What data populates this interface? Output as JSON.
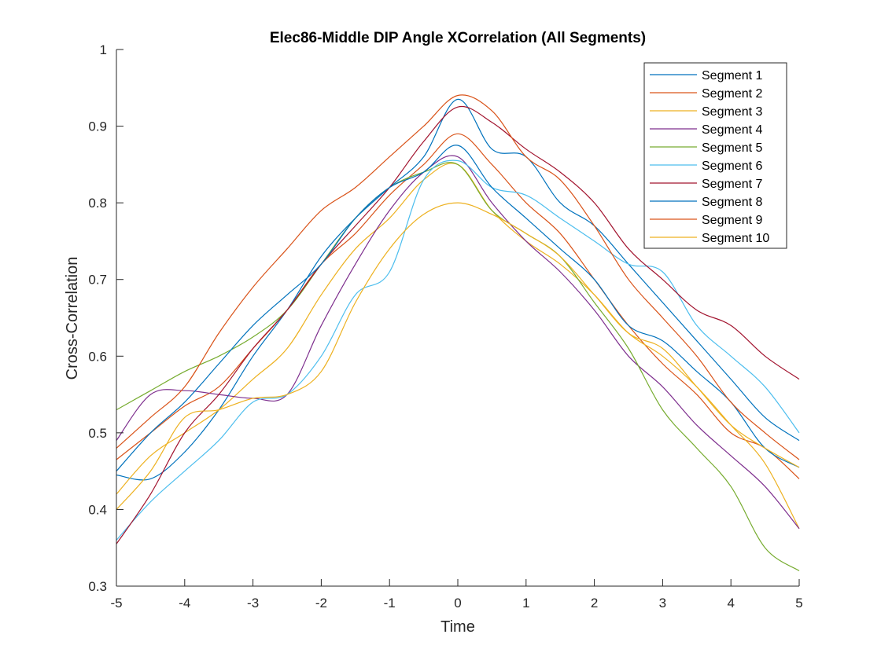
{
  "chart_data": {
    "type": "line",
    "title": "Elec86-Middle DIP Angle XCorrelation (All Segments)",
    "xlabel": "Time",
    "ylabel": "Cross-Correlation",
    "xlim": [
      -5,
      5
    ],
    "ylim": [
      0.3,
      1
    ],
    "xticks": [
      -5,
      -4,
      -3,
      -2,
      -1,
      0,
      1,
      2,
      3,
      4,
      5
    ],
    "xtick_labels": [
      "-5",
      "-4",
      "-3",
      "-2",
      "-1",
      "0",
      "1",
      "2",
      "3",
      "4",
      "5"
    ],
    "yticks": [
      0.3,
      0.4,
      0.5,
      0.6,
      0.7,
      0.8,
      0.9,
      1
    ],
    "ytick_labels": [
      "0.3",
      "0.4",
      "0.5",
      "0.6",
      "0.7",
      "0.8",
      "0.9",
      "1"
    ],
    "grid": false,
    "legend_position": "top-right",
    "x": [
      -5,
      -4.5,
      -4,
      -3.5,
      -3,
      -2.5,
      -2,
      -1.5,
      -1,
      -0.5,
      0,
      0.5,
      1,
      1.5,
      2,
      2.5,
      3,
      3.5,
      4,
      4.5,
      5
    ],
    "series": [
      {
        "name": "Segment 1",
        "color": "#0072BD",
        "values": [
          0.445,
          0.44,
          0.475,
          0.53,
          0.6,
          0.66,
          0.73,
          0.78,
          0.82,
          0.86,
          0.935,
          0.87,
          0.86,
          0.8,
          0.77,
          0.72,
          0.67,
          0.62,
          0.57,
          0.52,
          0.49
        ]
      },
      {
        "name": "Segment 2",
        "color": "#D95319",
        "values": [
          0.465,
          0.5,
          0.535,
          0.56,
          0.61,
          0.66,
          0.72,
          0.76,
          0.81,
          0.85,
          0.89,
          0.85,
          0.8,
          0.76,
          0.7,
          0.64,
          0.59,
          0.55,
          0.5,
          0.48,
          0.44
        ]
      },
      {
        "name": "Segment 3",
        "color": "#EDB120",
        "values": [
          0.42,
          0.47,
          0.5,
          0.53,
          0.57,
          0.61,
          0.68,
          0.74,
          0.78,
          0.83,
          0.85,
          0.79,
          0.75,
          0.72,
          0.68,
          0.63,
          0.6,
          0.56,
          0.51,
          0.46,
          0.375
        ]
      },
      {
        "name": "Segment 4",
        "color": "#7E2F8E",
        "values": [
          0.49,
          0.55,
          0.555,
          0.55,
          0.545,
          0.55,
          0.64,
          0.72,
          0.79,
          0.84,
          0.86,
          0.8,
          0.75,
          0.71,
          0.66,
          0.6,
          0.56,
          0.51,
          0.47,
          0.43,
          0.375
        ]
      },
      {
        "name": "Segment 5",
        "color": "#77AC30",
        "values": [
          0.53,
          0.555,
          0.58,
          0.6,
          0.625,
          0.66,
          0.72,
          0.78,
          0.82,
          0.84,
          0.85,
          0.79,
          0.76,
          0.73,
          0.67,
          0.61,
          0.53,
          0.48,
          0.43,
          0.35,
          0.32
        ]
      },
      {
        "name": "Segment 6",
        "color": "#4DBEEE",
        "values": [
          0.36,
          0.41,
          0.45,
          0.49,
          0.54,
          0.55,
          0.6,
          0.68,
          0.71,
          0.83,
          0.855,
          0.82,
          0.81,
          0.78,
          0.75,
          0.72,
          0.71,
          0.64,
          0.6,
          0.56,
          0.5
        ]
      },
      {
        "name": "Segment 7",
        "color": "#A2142F",
        "values": [
          0.355,
          0.42,
          0.5,
          0.55,
          0.61,
          0.66,
          0.72,
          0.77,
          0.82,
          0.88,
          0.925,
          0.905,
          0.87,
          0.84,
          0.8,
          0.74,
          0.7,
          0.66,
          0.64,
          0.6,
          0.57
        ]
      },
      {
        "name": "Segment 8",
        "color": "#0072BD",
        "values": [
          0.45,
          0.5,
          0.54,
          0.59,
          0.64,
          0.68,
          0.72,
          0.78,
          0.82,
          0.84,
          0.875,
          0.82,
          0.78,
          0.74,
          0.7,
          0.64,
          0.62,
          0.58,
          0.54,
          0.48,
          0.455
        ]
      },
      {
        "name": "Segment 9",
        "color": "#D95319",
        "values": [
          0.48,
          0.52,
          0.56,
          0.63,
          0.69,
          0.74,
          0.79,
          0.82,
          0.86,
          0.9,
          0.94,
          0.92,
          0.86,
          0.83,
          0.77,
          0.7,
          0.65,
          0.6,
          0.54,
          0.5,
          0.465
        ]
      },
      {
        "name": "Segment 10",
        "color": "#EDB120",
        "values": [
          0.4,
          0.45,
          0.52,
          0.53,
          0.545,
          0.55,
          0.58,
          0.67,
          0.74,
          0.785,
          0.8,
          0.785,
          0.76,
          0.73,
          0.68,
          0.63,
          0.61,
          0.56,
          0.51,
          0.48,
          0.455
        ]
      }
    ]
  }
}
